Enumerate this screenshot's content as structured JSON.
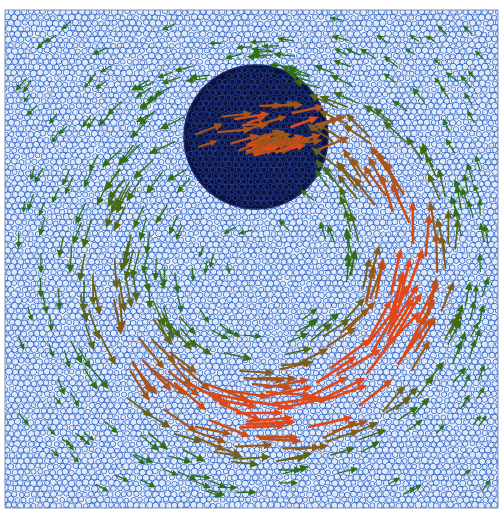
{
  "scene": {
    "description_free": true,
    "particle_fill": "#dde9f8",
    "particle_stroke": "#2a5fc8",
    "intruder_fill": "#0b1240",
    "intruder_particle_stroke": "#2f4da8",
    "arrow_low_color": "#2e6e16",
    "arrow_high_color": "#e0481a",
    "frame_color": "#7f8fb5"
  },
  "intruder": {
    "center_fraction_x": null,
    "label": ""
  },
  "vortex": {
    "type": "ring",
    "rotation": "counterclockwise",
    "peak_speed_relative": 1.0
  }
}
